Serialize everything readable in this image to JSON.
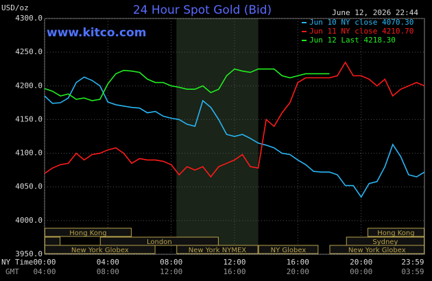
{
  "chart_data": {
    "type": "line",
    "title": "24 Hour Spot Gold (Bid)",
    "subtitle": "www.kitco.com",
    "timestamp": "June 12, 2026 22:44",
    "y_label": "USD/oz",
    "x_label": "NY Time",
    "x2_label": "GMT",
    "grid": true,
    "background": "#000000",
    "xlim": [
      0,
      24
    ],
    "ylim": [
      3950,
      4300
    ],
    "xticks": [
      {
        "value": 0,
        "label": "00:00"
      },
      {
        "value": 4,
        "label": "04:00"
      },
      {
        "value": 8,
        "label": "08:00"
      },
      {
        "value": 12,
        "label": "12:00"
      },
      {
        "value": 16,
        "label": "16:00"
      },
      {
        "value": 20,
        "label": "20:00"
      },
      {
        "value": 23.98,
        "label": "23:59"
      }
    ],
    "x2ticklabels": [
      "04:00",
      "08:00",
      "12:00",
      "16:00",
      "20:00",
      "00:00",
      "03:59"
    ],
    "yticks": [
      {
        "value": 3950,
        "label": "3950.0"
      },
      {
        "value": 4000,
        "label": "4000.0"
      },
      {
        "value": 4050,
        "label": "4050.0"
      },
      {
        "value": 4100,
        "label": "4100.0"
      },
      {
        "value": 4150,
        "label": "4150.0"
      },
      {
        "value": 4200,
        "label": "4200.0"
      },
      {
        "value": 4250,
        "label": "4250.0"
      },
      {
        "value": 4300,
        "label": "4300.0"
      }
    ],
    "shaded_span": [
      8.33,
      13.5
    ],
    "x": [
      0,
      0.5,
      1,
      1.5,
      2,
      2.5,
      3,
      3.5,
      4,
      4.5,
      5,
      5.5,
      6,
      6.5,
      7,
      7.5,
      8,
      8.5,
      9,
      9.5,
      10,
      10.5,
      11,
      11.5,
      12,
      12.5,
      13,
      13.5,
      14,
      14.5,
      15,
      15.5,
      16,
      16.5,
      17,
      17.5,
      18,
      18.5,
      19,
      19.5,
      20,
      20.5,
      21,
      21.5,
      22,
      22.5,
      23,
      23.5,
      24
    ],
    "series": [
      {
        "name": "Jun 10 NY close 4070.30",
        "color": "#29b6f6",
        "values": [
          4185,
          4174,
          4175,
          4182,
          4205,
          4213,
          4208,
          4200,
          4176,
          4172,
          4170,
          4168,
          4167,
          4160,
          4162,
          4155,
          4152,
          4150,
          4143,
          4140,
          4178,
          4168,
          4150,
          4128,
          4125,
          4128,
          4122,
          4115,
          4112,
          4108,
          4100,
          4098,
          4090,
          4083,
          4073,
          4072,
          4072,
          4068,
          4052,
          4052,
          4035,
          4055,
          4058,
          4080,
          4113,
          4095,
          4068,
          4065,
          4072
        ]
      },
      {
        "name": "Jun 11 NY close 4210.70",
        "color": "#ff1a1a",
        "values": [
          4070,
          4078,
          4083,
          4085,
          4100,
          4090,
          4098,
          4100,
          4105,
          4108,
          4100,
          4085,
          4092,
          4090,
          4090,
          4088,
          4083,
          4068,
          4080,
          4075,
          4080,
          4065,
          4080,
          4085,
          4090,
          4098,
          4080,
          4078,
          4150,
          4140,
          4160,
          4175,
          4205,
          4212,
          4212,
          4212,
          4212,
          4215,
          4235,
          4215,
          4215,
          4210,
          4200,
          4210,
          4185,
          4195,
          4200,
          4205,
          4200
        ]
      },
      {
        "name": "Jun 12 Last 4218.30",
        "color": "#22ee22",
        "values": [
          4196,
          4192,
          4185,
          4188,
          4180,
          4182,
          4178,
          4180,
          4203,
          4218,
          4223,
          4222,
          4220,
          4210,
          4205,
          4205,
          4200,
          4198,
          4195,
          4195,
          4200,
          4190,
          4195,
          4215,
          4225,
          4222,
          4220,
          4225,
          4225,
          4225,
          4215,
          4212,
          4215,
          4218,
          4218,
          4218,
          4218,
          null,
          null,
          null,
          null,
          null,
          null,
          null,
          null,
          null,
          null,
          null,
          null
        ]
      }
    ],
    "sessions": [
      {
        "label": "Hong Kong",
        "row": 0,
        "span": [
          0,
          5.5
        ]
      },
      {
        "label": "Hong Kong",
        "row": 0,
        "span": [
          20.4,
          24
        ]
      },
      {
        "label": null,
        "row": 1,
        "span": [
          0,
          1.0
        ]
      },
      {
        "label": "London",
        "row": 1,
        "span": [
          3.5,
          11.0
        ]
      },
      {
        "label": "Sydney",
        "row": 1,
        "span": [
          19.05,
          24
        ]
      },
      {
        "label": "New York Globex",
        "row": 2,
        "span": [
          0,
          7.0
        ]
      },
      {
        "label": "New York NYMEX",
        "row": 2,
        "span": [
          8.33,
          13.5
        ]
      },
      {
        "label": "NY Globex",
        "row": 2,
        "span": [
          13.5,
          17.3
        ]
      },
      {
        "label": "New York Globex",
        "row": 2,
        "span": [
          18.0,
          24
        ]
      }
    ]
  }
}
